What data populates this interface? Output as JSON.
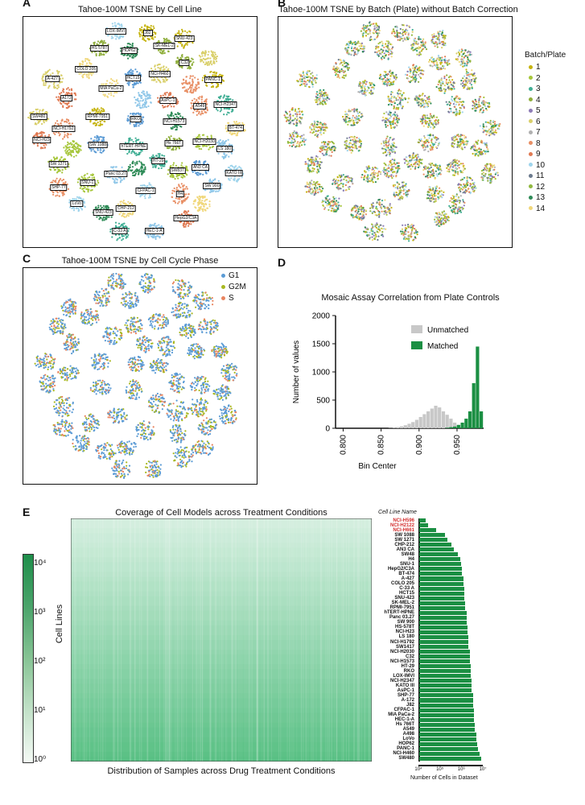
{
  "panels": {
    "A": {
      "letter": "A",
      "title": "Tahoe-100M TSNE by Cell Line"
    },
    "B": {
      "letter": "B",
      "title": "Tahoe-100M TSNE by Batch (Plate) without Batch Correction"
    },
    "C": {
      "letter": "C",
      "title": "Tahoe-100M TSNE by Cell Cycle Phase"
    },
    "D": {
      "letter": "D",
      "title": "Mosaic Assay Correlation from Plate Controls"
    },
    "E": {
      "letter": "E",
      "title": "Coverage of Cell Models across Treatment Conditions"
    }
  },
  "panelA": {
    "cell_labels": [
      "Panc 03.27",
      "A549",
      "MIA PaCa-2",
      "SNU-1",
      "NCI-H2347",
      "RKO",
      "PANC-1",
      "AsPC-1",
      "CFPAC-1",
      "C32",
      "NCI-H460",
      "SNU-423",
      "SW 900",
      "NCI-H1792",
      "CHP-212",
      "NCI-H2030",
      "hTERT-HPNE",
      "SW 1088",
      "RPMI-7951",
      "HepG2/C3A",
      "KATO III",
      "HS 578T",
      "A-427",
      "NCI-H1573",
      "HEC-1-A",
      "H4",
      "COLO 205",
      "SW 1271",
      "HT-29",
      "HCT15",
      "J82",
      "A172",
      "LoVo",
      "Hs 766T",
      "SW480",
      "HOP62",
      "LS 180",
      "SHP-77",
      "BT-474",
      "SW837",
      "C-33 A",
      "AN3 CA",
      "SNU-423",
      "NCI-H23",
      "LOX-IMVI",
      "SK-MEL-2"
    ]
  },
  "panelB": {
    "legend_title": "Batch/Plate",
    "batches": [
      {
        "label": "1",
        "color": "#c5b30e"
      },
      {
        "label": "2",
        "color": "#a6c63a"
      },
      {
        "label": "3",
        "color": "#3fae94"
      },
      {
        "label": "4",
        "color": "#8fae3c"
      },
      {
        "label": "5",
        "color": "#8c7bb5"
      },
      {
        "label": "6",
        "color": "#d9cf6a"
      },
      {
        "label": "7",
        "color": "#b0b0b0"
      },
      {
        "label": "8",
        "color": "#e88f65"
      },
      {
        "label": "9",
        "color": "#e07a53"
      },
      {
        "label": "10",
        "color": "#9fd4ec"
      },
      {
        "label": "11",
        "color": "#6c7b8e"
      },
      {
        "label": "12",
        "color": "#90b83f"
      },
      {
        "label": "13",
        "color": "#2e8b57"
      },
      {
        "label": "14",
        "color": "#f0d77a"
      }
    ]
  },
  "panelC": {
    "phases": [
      {
        "label": "G1",
        "color": "#5b9bd5"
      },
      {
        "label": "G2M",
        "color": "#a8b820"
      },
      {
        "label": "S",
        "color": "#e8845f"
      }
    ]
  },
  "chart_data": {
    "type": "bar",
    "title": "Mosaic Assay Correlation from Plate Controls",
    "xlabel": "Bin Center",
    "ylabel": "Number of values",
    "xlim": [
      0.79,
      0.985
    ],
    "ylim": [
      0,
      2000
    ],
    "yticks": [
      "0",
      "500",
      "1000",
      "1500",
      "2000"
    ],
    "xticks": [
      "0.800",
      "0.850",
      "0.900",
      "0.950"
    ],
    "legend_position": "top-right",
    "series": [
      {
        "name": "Unmatched",
        "color": "#c8c8c8",
        "x": [
          0.862,
          0.867,
          0.872,
          0.877,
          0.882,
          0.887,
          0.892,
          0.897,
          0.902,
          0.907,
          0.912,
          0.917,
          0.922,
          0.927,
          0.932,
          0.937,
          0.942,
          0.947,
          0.952,
          0.957
        ],
        "values": [
          5,
          10,
          20,
          35,
          55,
          80,
          110,
          150,
          200,
          250,
          300,
          350,
          400,
          370,
          300,
          240,
          170,
          100,
          50,
          20
        ]
      },
      {
        "name": "Matched",
        "color": "#1b8f43",
        "x": [
          0.937,
          0.942,
          0.947,
          0.952,
          0.957,
          0.962,
          0.967,
          0.972,
          0.977,
          0.982
        ],
        "values": [
          10,
          20,
          30,
          60,
          100,
          170,
          300,
          800,
          1450,
          300
        ]
      }
    ]
  },
  "panelE": {
    "heatmap_title": "Coverage of Cell Models across Treatment Conditions",
    "ylabel": "Cell Lines",
    "xlabel": "Distribution of Samples across Drug Treatment Conditions",
    "colorbar_ticks": [
      "10⁴",
      "10³",
      "10²",
      "10¹",
      "10⁰"
    ],
    "bar_header": "Cell Line Name",
    "bar_xlabel": "Number of Cells in Dataset",
    "bar_xticks": [
      "10⁴",
      "10⁵",
      "10⁶",
      "10⁷"
    ],
    "cell_lines": [
      {
        "name": "NCI-H596",
        "red": true,
        "log_cells": 4.3
      },
      {
        "name": "NCI-H2122",
        "red": true,
        "log_cells": 4.4
      },
      {
        "name": "NCI-H661",
        "red": true,
        "log_cells": 4.8
      },
      {
        "name": "SW 1088",
        "red": false,
        "log_cells": 5.2
      },
      {
        "name": "SW 1271",
        "red": false,
        "log_cells": 5.3
      },
      {
        "name": "CHP-212",
        "red": false,
        "log_cells": 5.5
      },
      {
        "name": "AN3 CA",
        "red": false,
        "log_cells": 5.6
      },
      {
        "name": "SW48",
        "red": false,
        "log_cells": 5.8
      },
      {
        "name": "H4",
        "red": false,
        "log_cells": 5.9
      },
      {
        "name": "SNU-1",
        "red": false,
        "log_cells": 5.95
      },
      {
        "name": "HepG2/C3A",
        "red": false,
        "log_cells": 6.0
      },
      {
        "name": "BT-474",
        "red": false,
        "log_cells": 6.0
      },
      {
        "name": "A-427",
        "red": false,
        "log_cells": 6.05
      },
      {
        "name": "COLO 205",
        "red": false,
        "log_cells": 6.05
      },
      {
        "name": "C-33 A",
        "red": false,
        "log_cells": 6.1
      },
      {
        "name": "HCT15",
        "red": false,
        "log_cells": 6.1
      },
      {
        "name": "SNU-423",
        "red": false,
        "log_cells": 6.1
      },
      {
        "name": "SK-MEL-2",
        "red": false,
        "log_cells": 6.15
      },
      {
        "name": "RPMI-7951",
        "red": false,
        "log_cells": 6.15
      },
      {
        "name": "hTERT-HPNE",
        "red": false,
        "log_cells": 6.2
      },
      {
        "name": "Panc 03.27",
        "red": false,
        "log_cells": 6.2
      },
      {
        "name": "SW 900",
        "red": false,
        "log_cells": 6.2
      },
      {
        "name": "HS-578T",
        "red": false,
        "log_cells": 6.25
      },
      {
        "name": "NCI-H23",
        "red": false,
        "log_cells": 6.25
      },
      {
        "name": "LS 180",
        "red": false,
        "log_cells": 6.3
      },
      {
        "name": "NCI-H1792",
        "red": false,
        "log_cells": 6.3
      },
      {
        "name": "SW1417",
        "red": false,
        "log_cells": 6.3
      },
      {
        "name": "NCI-H2030",
        "red": false,
        "log_cells": 6.35
      },
      {
        "name": "C32",
        "red": false,
        "log_cells": 6.35
      },
      {
        "name": "NCI-H1573",
        "red": false,
        "log_cells": 6.35
      },
      {
        "name": "HT-29",
        "red": false,
        "log_cells": 6.4
      },
      {
        "name": "RKO",
        "red": false,
        "log_cells": 6.4
      },
      {
        "name": "LOX-IMVI",
        "red": false,
        "log_cells": 6.4
      },
      {
        "name": "NCI-H2347",
        "red": false,
        "log_cells": 6.45
      },
      {
        "name": "KATO III",
        "red": false,
        "log_cells": 6.45
      },
      {
        "name": "AsPC-1",
        "red": false,
        "log_cells": 6.45
      },
      {
        "name": "SHP-77",
        "red": false,
        "log_cells": 6.5
      },
      {
        "name": "A-172",
        "red": false,
        "log_cells": 6.5
      },
      {
        "name": "J82",
        "red": false,
        "log_cells": 6.5
      },
      {
        "name": "CFPAC-1",
        "red": false,
        "log_cells": 6.55
      },
      {
        "name": "MIA PaCa-2",
        "red": false,
        "log_cells": 6.55
      },
      {
        "name": "HEC-1-A",
        "red": false,
        "log_cells": 6.55
      },
      {
        "name": "Hs 766T",
        "red": false,
        "log_cells": 6.6
      },
      {
        "name": "A549",
        "red": false,
        "log_cells": 6.6
      },
      {
        "name": "A498",
        "red": false,
        "log_cells": 6.65
      },
      {
        "name": "LoVo",
        "red": false,
        "log_cells": 6.65
      },
      {
        "name": "HOP62",
        "red": false,
        "log_cells": 6.7
      },
      {
        "name": "PANC-1",
        "red": false,
        "log_cells": 6.75
      },
      {
        "name": "NCI-H460",
        "red": false,
        "log_cells": 6.8
      },
      {
        "name": "SW480",
        "red": false,
        "log_cells": 6.9
      }
    ]
  }
}
